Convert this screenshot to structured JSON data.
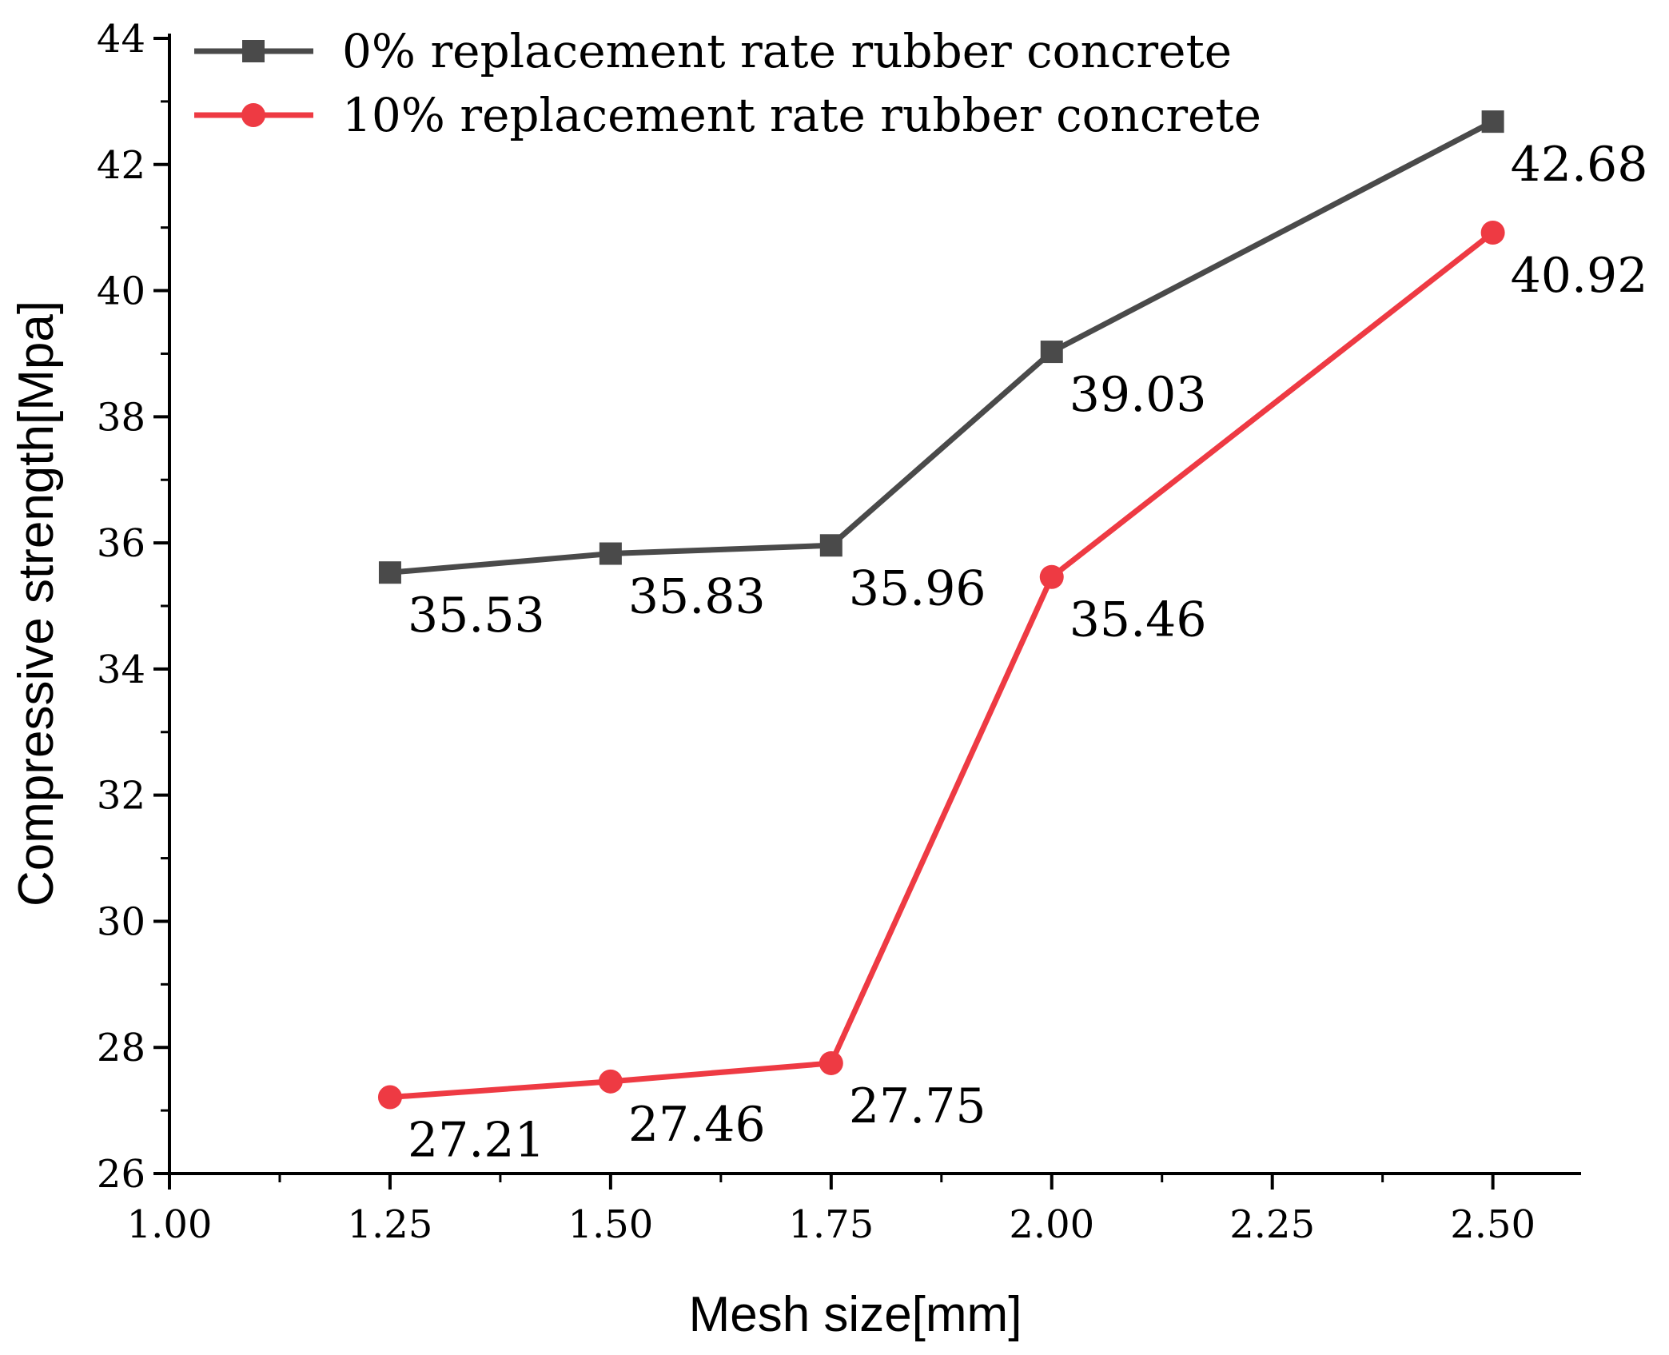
{
  "chart_data": {
    "type": "line",
    "title": "",
    "xlabel": "Mesh size[mm]",
    "ylabel": "Compressive strength[Mpa]",
    "xlim": [
      1.0,
      2.6
    ],
    "ylim": [
      26,
      44
    ],
    "x_ticks": [
      "1.00",
      "1.25",
      "1.50",
      "1.75",
      "2.00",
      "2.25",
      "2.50"
    ],
    "y_ticks": [
      "26",
      "28",
      "30",
      "32",
      "34",
      "36",
      "38",
      "40",
      "42",
      "44"
    ],
    "x": [
      1.25,
      1.5,
      1.75,
      2.0,
      2.5
    ],
    "grid": false,
    "legend_position": "top-left",
    "series": [
      {
        "name": "0% replacement rate rubber concrete",
        "marker": "square",
        "color": "#4a4a4a",
        "values": [
          35.53,
          35.83,
          35.96,
          39.03,
          42.68
        ],
        "labels": [
          "35.53",
          "35.83",
          "35.96",
          "39.03",
          "42.68"
        ]
      },
      {
        "name": "10% replacement rate rubber concrete",
        "marker": "circle",
        "color": "#ee3a43",
        "values": [
          27.21,
          27.46,
          27.75,
          35.46,
          40.92
        ],
        "labels": [
          "27.21",
          "27.46",
          "27.75",
          "35.46",
          "40.92"
        ]
      }
    ]
  }
}
